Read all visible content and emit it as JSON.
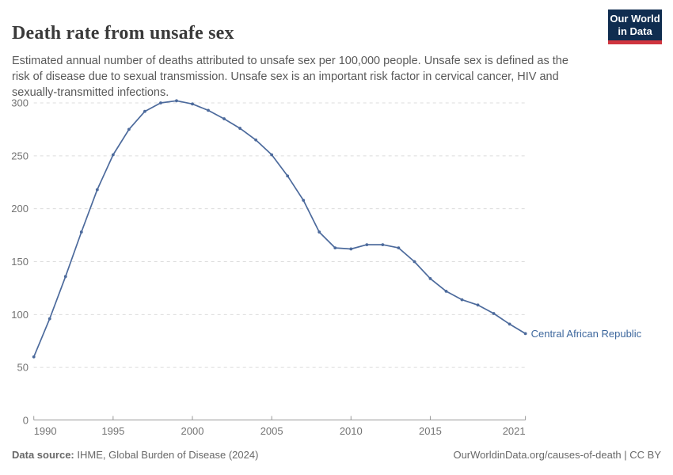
{
  "header": {
    "title": "Death rate from unsafe sex",
    "subtitle": "Estimated annual number of deaths attributed to unsafe sex per 100,000 people. Unsafe sex is defined as the risk of disease due to sexual transmission. Unsafe sex is an important risk factor in cervical cancer, HIV and sexually-transmitted infections.",
    "logo": {
      "line1": "Our World",
      "line2": "in Data"
    }
  },
  "chart_data": {
    "type": "line",
    "title": "Death rate from unsafe sex",
    "x": [
      1990,
      1991,
      1992,
      1993,
      1994,
      1995,
      1996,
      1997,
      1998,
      1999,
      2000,
      2001,
      2002,
      2003,
      2004,
      2005,
      2006,
      2007,
      2008,
      2009,
      2010,
      2011,
      2012,
      2013,
      2014,
      2015,
      2016,
      2017,
      2018,
      2019,
      2020,
      2021
    ],
    "series": [
      {
        "name": "Central African Republic",
        "values": [
          60,
          96,
          136,
          178,
          218,
          251,
          275,
          292,
          300,
          302,
          299,
          293,
          285,
          276,
          265,
          251,
          231,
          208,
          178,
          163,
          162,
          166,
          166,
          163,
          150,
          134,
          122,
          114,
          109,
          101,
          91,
          82
        ]
      }
    ],
    "xlabel": "",
    "ylabel": "",
    "ylim": [
      0,
      300
    ],
    "yticks": [
      0,
      50,
      100,
      150,
      200,
      250,
      300
    ],
    "xticks": [
      1990,
      1995,
      2000,
      2005,
      2010,
      2015,
      2021
    ],
    "grid": "horizontal-dashed",
    "legend_position": "end-of-line-label"
  },
  "footer": {
    "source_label": "Data source:",
    "source_text": " IHME, Global Burden of Disease (2024)",
    "credit": "OurWorldinData.org/causes-of-death | CC BY"
  },
  "colors": {
    "line": "#4c6a9c",
    "series_label": "#3d679d",
    "grid": "#dcdcdc",
    "axis": "#999999",
    "tick_text": "#737373",
    "logo_bg": "#102d50",
    "logo_accent": "#d0353f"
  }
}
